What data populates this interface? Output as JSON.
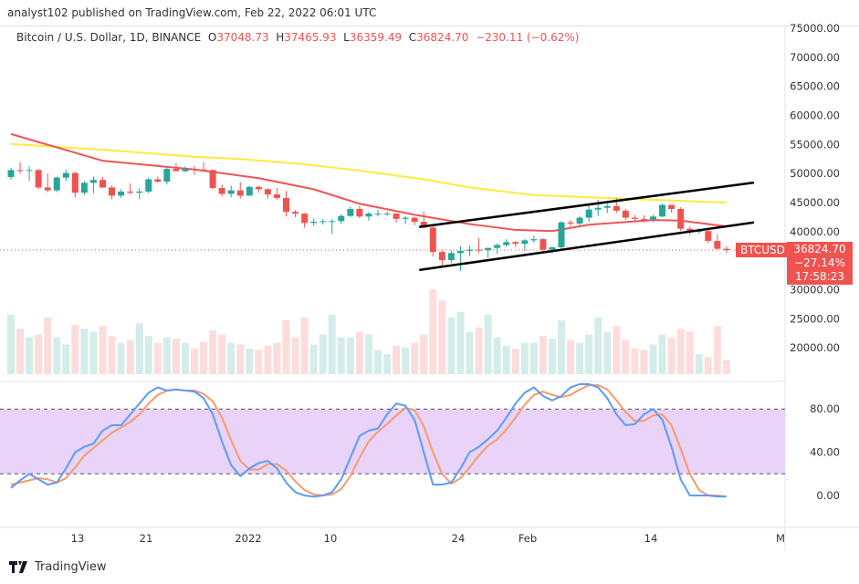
{
  "header": {
    "published": "analyst102 published on TradingView.com, Feb 22, 2022 06:01 UTC"
  },
  "legend": {
    "symbol": "Bitcoin / U.S. Dollar, 1D, BINANCE",
    "o_label": "O",
    "o": "37048.73",
    "h_label": "H",
    "h": "37465.93",
    "l_label": "L",
    "l": "36359.49",
    "c_label": "C",
    "c": "36824.70",
    "change": "−230.11 (−0.62%)"
  },
  "price_tag": {
    "symbol": "BTCUSD",
    "price": "36824.70",
    "change_pct": "−27.14%",
    "countdown": "17:58:23"
  },
  "footer": {
    "brand": "TradingView"
  },
  "colors": {
    "up": "#26a69a",
    "down": "#ef5350",
    "ma_fast": "#f05454",
    "ma_slow": "#ffeb3b",
    "stoch_k": "#5b9cf6",
    "stoch_d": "#f89a6a",
    "stoch_band": "#e9d3f9",
    "channel": "#000000"
  },
  "chart_data": {
    "type": "candlestick",
    "price_ticks": [
      "75000.00",
      "70000.00",
      "65000.00",
      "60000.00",
      "55000.00",
      "50000.00",
      "45000.00",
      "40000.00",
      "30000.00",
      "25000.00",
      "20000.00"
    ],
    "price_tick_values": [
      75000,
      70000,
      65000,
      60000,
      55000,
      50000,
      45000,
      40000,
      30000,
      25000,
      20000
    ],
    "x_ticks": [
      {
        "label": "13",
        "date": "Dec 13"
      },
      {
        "label": "21",
        "date": "Dec 21"
      },
      {
        "label": "2022",
        "date": "Jan 1"
      },
      {
        "label": "10",
        "date": "Jan 10"
      },
      {
        "label": "24",
        "date": "Jan 24"
      },
      {
        "label": "Feb",
        "date": "Feb 1"
      },
      {
        "label": "14",
        "date": "Feb 14"
      },
      {
        "label": "M",
        "date": "Mar 1"
      }
    ],
    "dates": [
      "Dec 6",
      "Dec 7",
      "Dec 8",
      "Dec 9",
      "Dec 10",
      "Dec 11",
      "Dec 12",
      "Dec 13",
      "Dec 14",
      "Dec 15",
      "Dec 16",
      "Dec 17",
      "Dec 18",
      "Dec 19",
      "Dec 20",
      "Dec 21",
      "Dec 22",
      "Dec 23",
      "Dec 24",
      "Dec 25",
      "Dec 26",
      "Dec 27",
      "Dec 28",
      "Dec 29",
      "Dec 30",
      "Dec 31",
      "Jan 1",
      "Jan 2",
      "Jan 3",
      "Jan 4",
      "Jan 5",
      "Jan 6",
      "Jan 7",
      "Jan 8",
      "Jan 9",
      "Jan 10",
      "Jan 11",
      "Jan 12",
      "Jan 13",
      "Jan 14",
      "Jan 15",
      "Jan 16",
      "Jan 17",
      "Jan 18",
      "Jan 19",
      "Jan 20",
      "Jan 21",
      "Jan 22",
      "Jan 23",
      "Jan 24",
      "Jan 25",
      "Jan 26",
      "Jan 27",
      "Jan 28",
      "Jan 29",
      "Jan 30",
      "Jan 31",
      "Feb 1",
      "Feb 2",
      "Feb 3",
      "Feb 4",
      "Feb 5",
      "Feb 6",
      "Feb 7",
      "Feb 8",
      "Feb 9",
      "Feb 10",
      "Feb 11",
      "Feb 12",
      "Feb 13",
      "Feb 14",
      "Feb 15",
      "Feb 16",
      "Feb 17",
      "Feb 18",
      "Feb 19",
      "Feb 20",
      "Feb 21",
      "Feb 22"
    ],
    "ohlc": [
      [
        49400,
        51000,
        48900,
        50600
      ],
      [
        50600,
        51900,
        50000,
        50500
      ],
      [
        50500,
        51200,
        48700,
        50600
      ],
      [
        50600,
        50800,
        47300,
        47600
      ],
      [
        47600,
        50000,
        46800,
        47100
      ],
      [
        47100,
        49500,
        46800,
        49300
      ],
      [
        49300,
        50700,
        48700,
        50100
      ],
      [
        50100,
        50300,
        45900,
        46700
      ],
      [
        46700,
        48700,
        46300,
        48400
      ],
      [
        48400,
        49500,
        46600,
        48900
      ],
      [
        48900,
        49400,
        47500,
        47600
      ],
      [
        47600,
        48000,
        45600,
        46200
      ],
      [
        46200,
        47300,
        45800,
        46900
      ],
      [
        46900,
        48300,
        46400,
        46700
      ],
      [
        46700,
        47500,
        45600,
        46900
      ],
      [
        46900,
        49300,
        46600,
        49000
      ],
      [
        49000,
        49500,
        48400,
        48600
      ],
      [
        48600,
        51300,
        48100,
        50800
      ],
      [
        50800,
        51800,
        50400,
        50400
      ],
      [
        50400,
        51200,
        50200,
        50800
      ],
      [
        50800,
        51300,
        49800,
        50700
      ],
      [
        50700,
        52000,
        50400,
        50600
      ],
      [
        50600,
        50700,
        47300,
        47500
      ],
      [
        47500,
        48100,
        46100,
        46500
      ],
      [
        46500,
        47900,
        45900,
        47100
      ],
      [
        47100,
        48500,
        45700,
        46200
      ],
      [
        46200,
        47900,
        46200,
        47700
      ],
      [
        47700,
        47900,
        46700,
        47300
      ],
      [
        47300,
        47500,
        45700,
        46400
      ],
      [
        46400,
        47500,
        45500,
        45800
      ],
      [
        45800,
        47000,
        42600,
        43400
      ],
      [
        43400,
        43700,
        42500,
        43100
      ],
      [
        43100,
        43200,
        40700,
        41500
      ],
      [
        41500,
        42300,
        41000,
        41700
      ],
      [
        41700,
        42200,
        41200,
        41800
      ],
      [
        41800,
        42200,
        39600,
        41800
      ],
      [
        41800,
        43000,
        41300,
        42700
      ],
      [
        42700,
        44300,
        42500,
        43900
      ],
      [
        43900,
        44400,
        42300,
        42600
      ],
      [
        42600,
        43400,
        41900,
        43100
      ],
      [
        43100,
        43800,
        42600,
        43100
      ],
      [
        43100,
        43500,
        42700,
        43100
      ],
      [
        43100,
        43200,
        41600,
        42200
      ],
      [
        42200,
        42700,
        41300,
        42400
      ],
      [
        42400,
        42500,
        41100,
        41700
      ],
      [
        41700,
        43500,
        40600,
        40700
      ],
      [
        40700,
        41100,
        35700,
        36500
      ],
      [
        36500,
        36800,
        34000,
        35100
      ],
      [
        35100,
        36800,
        34600,
        36300
      ],
      [
        36300,
        37500,
        33200,
        36700
      ],
      [
        36700,
        37600,
        35800,
        36900
      ],
      [
        36900,
        38900,
        36300,
        36800
      ],
      [
        36800,
        37200,
        35500,
        37200
      ],
      [
        37200,
        38000,
        36200,
        37700
      ],
      [
        37700,
        38700,
        37400,
        38200
      ],
      [
        38200,
        38400,
        37400,
        37900
      ],
      [
        37900,
        38700,
        36700,
        38500
      ],
      [
        38500,
        39300,
        38100,
        38700
      ],
      [
        38700,
        38900,
        36600,
        36900
      ],
      [
        36900,
        37400,
        36300,
        37300
      ],
      [
        37300,
        41800,
        37000,
        41600
      ],
      [
        41600,
        42000,
        40900,
        41400
      ],
      [
        41400,
        42700,
        41100,
        42400
      ],
      [
        42400,
        44500,
        41700,
        43800
      ],
      [
        43800,
        45500,
        42700,
        44100
      ],
      [
        44100,
        44800,
        43200,
        44400
      ],
      [
        44400,
        45800,
        43200,
        43600
      ],
      [
        43600,
        43900,
        42000,
        42400
      ],
      [
        42400,
        42900,
        41800,
        42200
      ],
      [
        42200,
        42800,
        41600,
        42100
      ],
      [
        42100,
        42900,
        41600,
        42600
      ],
      [
        42600,
        44800,
        42500,
        44600
      ],
      [
        44600,
        44600,
        43300,
        43900
      ],
      [
        43900,
        44200,
        40100,
        40500
      ],
      [
        40500,
        40900,
        39400,
        40000
      ],
      [
        40000,
        40600,
        39700,
        40100
      ],
      [
        40100,
        40500,
        38000,
        38400
      ],
      [
        38400,
        39500,
        36800,
        37050
      ],
      [
        37048.73,
        37465.93,
        36359.49,
        36824.7
      ]
    ],
    "volume": [
      42,
      32,
      26,
      28,
      40,
      26,
      21,
      35,
      32,
      30,
      34,
      27,
      22,
      24,
      36,
      27,
      22,
      26,
      25,
      22,
      18,
      23,
      31,
      28,
      22,
      21,
      18,
      17,
      20,
      22,
      38,
      26,
      40,
      21,
      28,
      42,
      26,
      26,
      30,
      28,
      17,
      14,
      20,
      19,
      22,
      28,
      60,
      52,
      40,
      44,
      30,
      33,
      42,
      26,
      20,
      18,
      22,
      22,
      27,
      25,
      38,
      24,
      22,
      28,
      40,
      30,
      34,
      24,
      18,
      17,
      21,
      28,
      26,
      32,
      30,
      14,
      12,
      34,
      10
    ],
    "ma_fast_points": [
      [
        "Dec 6",
        56800
      ],
      [
        "Dec 16",
        52200
      ],
      [
        "Dec 26",
        50700
      ],
      [
        "Jan 2",
        49200
      ],
      [
        "Jan 8",
        47300
      ],
      [
        "Jan 13",
        44800
      ],
      [
        "Jan 19",
        42900
      ],
      [
        "Jan 25",
        41300
      ],
      [
        "Jan 30",
        40300
      ],
      [
        "Feb 3",
        40100
      ],
      [
        "Feb 7",
        41200
      ],
      [
        "Feb 14",
        42000
      ],
      [
        "Feb 17",
        41900
      ],
      [
        "Feb 22",
        40900
      ]
    ],
    "ma_slow_points": [
      [
        "Dec 6",
        55100
      ],
      [
        "Dec 16",
        54100
      ],
      [
        "Dec 26",
        52900
      ],
      [
        "Dec 31",
        52500
      ],
      [
        "Jan 7",
        51600
      ],
      [
        "Jan 13",
        50500
      ],
      [
        "Jan 20",
        49000
      ],
      [
        "Jan 25",
        47600
      ],
      [
        "Feb 1",
        46300
      ],
      [
        "Feb 7",
        45900
      ],
      [
        "Feb 22",
        45000
      ]
    ],
    "channel": {
      "upper": [
        [
          "Jan 20",
          40800
        ],
        [
          "Feb 22",
          47800
        ]
      ],
      "lower": [
        [
          "Jan 20",
          33400
        ],
        [
          "Feb 22",
          40900
        ]
      ]
    },
    "stoch": {
      "ticks": [
        "80.00",
        "40.00",
        "0.00"
      ],
      "tick_values": [
        80,
        40,
        0
      ],
      "band": [
        20,
        80
      ],
      "k": [
        7,
        14,
        20,
        15,
        10,
        12,
        25,
        40,
        45,
        48,
        60,
        65,
        65,
        75,
        85,
        95,
        100,
        97,
        98,
        97,
        96,
        90,
        75,
        50,
        28,
        18,
        25,
        30,
        32,
        25,
        12,
        3,
        0,
        -1,
        0,
        3,
        15,
        35,
        55,
        60,
        62,
        75,
        85,
        83,
        70,
        40,
        10,
        10,
        12,
        25,
        40,
        45,
        52,
        60,
        72,
        85,
        95,
        100,
        92,
        88,
        92,
        100,
        103,
        103,
        100,
        90,
        75,
        65,
        66,
        75,
        80,
        70,
        45,
        15,
        0,
        0,
        0,
        -1,
        -1
      ],
      "d": [
        10,
        12,
        14,
        16,
        15,
        12,
        16,
        26,
        37,
        44,
        51,
        58,
        63,
        68,
        75,
        85,
        93,
        97,
        98,
        97,
        97,
        94,
        87,
        72,
        51,
        32,
        24,
        24,
        29,
        29,
        23,
        13,
        5,
        1,
        0,
        1,
        6,
        18,
        35,
        50,
        59,
        66,
        74,
        81,
        79,
        64,
        40,
        20,
        11,
        16,
        26,
        37,
        46,
        52,
        61,
        72,
        84,
        93,
        96,
        93,
        91,
        93,
        98,
        102,
        102,
        98,
        88,
        77,
        69,
        69,
        74,
        75,
        65,
        43,
        20,
        5,
        0,
        0,
        -1
      ]
    }
  }
}
